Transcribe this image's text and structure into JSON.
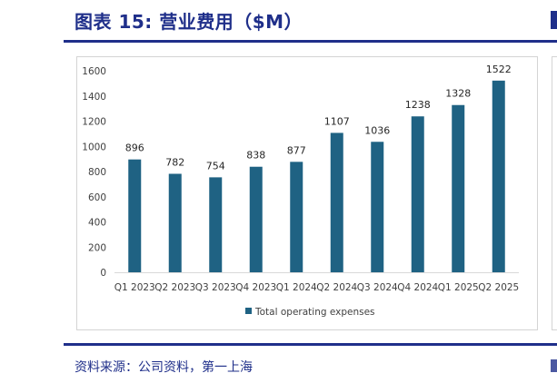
{
  "figure": {
    "title": "图表 15: 营业费用（$M）",
    "source": "资料来源：公司资料，第一上海"
  },
  "colors": {
    "bar": "#1f6283",
    "title": "#1f2f8a"
  },
  "chart_data": {
    "type": "bar",
    "categories": [
      "Q1 2023",
      "Q2 2023",
      "Q3 2023",
      "Q4 2023",
      "Q1 2024",
      "Q2 2024",
      "Q3 2024",
      "Q4 2024",
      "Q1 2025",
      "Q2 2025"
    ],
    "series": [
      {
        "name": "Total operating expenses",
        "values": [
          896,
          782,
          754,
          838,
          877,
          1107,
          1036,
          1238,
          1328,
          1522
        ]
      }
    ],
    "ylim": [
      0,
      1600
    ],
    "yticks": [
      0,
      200,
      400,
      600,
      800,
      1000,
      1200,
      1400,
      1600
    ],
    "grid": false,
    "legend": "bottom",
    "data_labels": true
  }
}
